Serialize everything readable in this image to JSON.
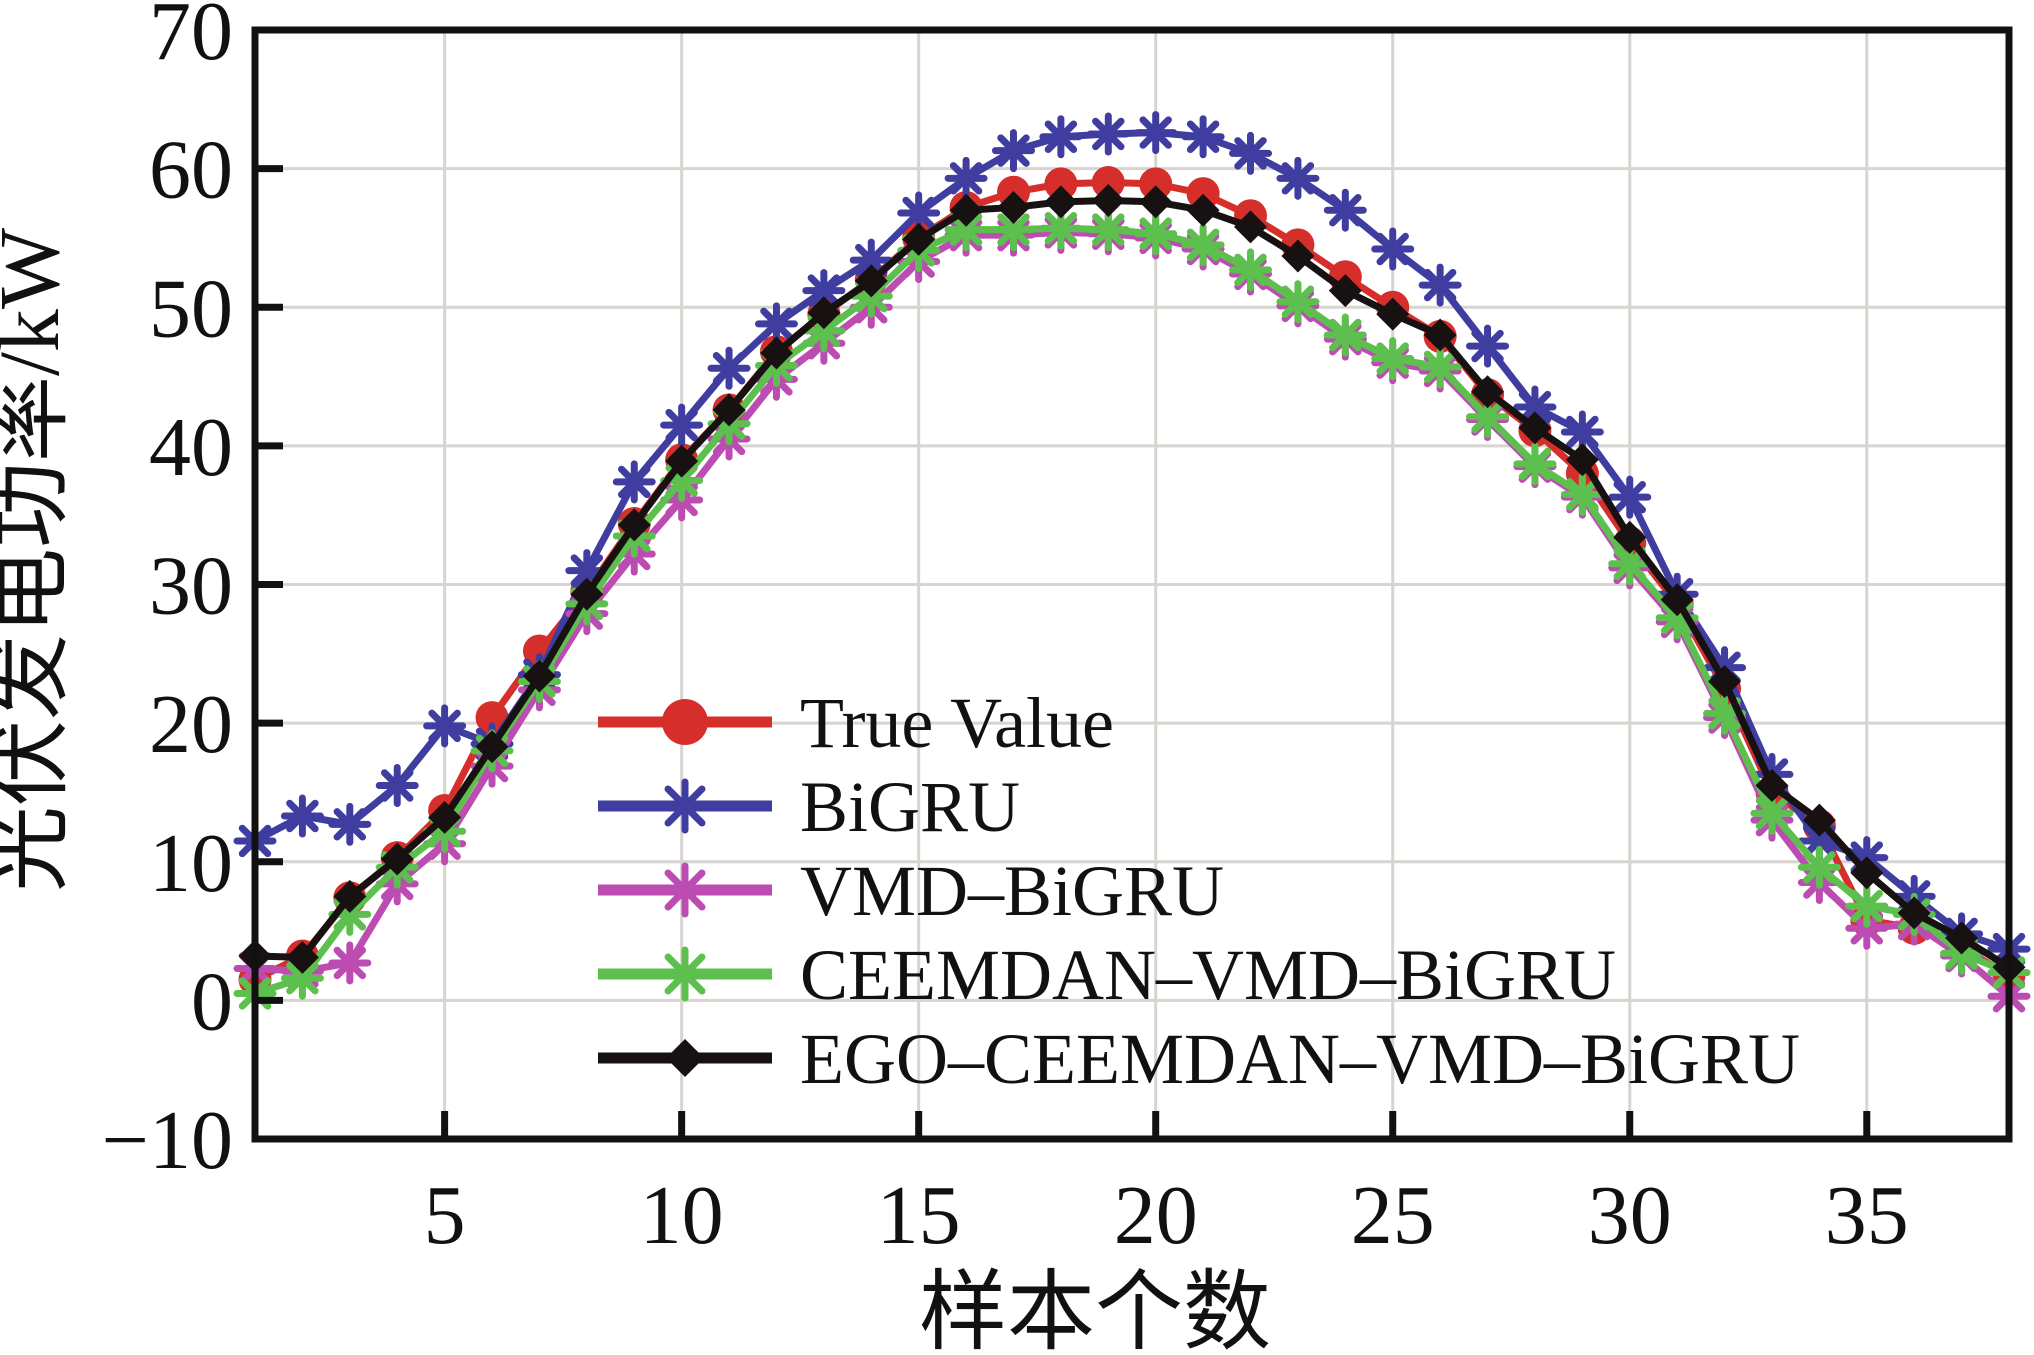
{
  "chart_data": {
    "type": "line",
    "title": "",
    "xlabel": "样本个数",
    "ylabel": "光伏发电功率/kW",
    "xlim": [
      1,
      38
    ],
    "ylim": [
      -10,
      70
    ],
    "xticks": [
      5,
      10,
      15,
      20,
      25,
      30,
      35
    ],
    "yticks": [
      -10,
      0,
      10,
      20,
      30,
      40,
      50,
      60,
      70
    ],
    "grid": true,
    "grid_color": "#d8d4d0",
    "axis_color": "#111111",
    "legend_position": "inside-lower-left-of-center, no frame",
    "x": [
      1,
      2,
      3,
      4,
      5,
      6,
      7,
      8,
      9,
      10,
      11,
      12,
      13,
      14,
      15,
      16,
      17,
      18,
      19,
      20,
      21,
      22,
      23,
      24,
      25,
      26,
      27,
      28,
      29,
      30,
      31,
      32,
      33,
      34,
      35,
      36,
      37,
      38
    ],
    "series": [
      {
        "name": "True Value",
        "color": "#d62f2b",
        "marker": "circle",
        "values": [
          1.5,
          3.2,
          7.4,
          10.3,
          13.7,
          20.4,
          25.2,
          29.5,
          34.4,
          39.0,
          42.6,
          46.8,
          49.5,
          52.0,
          55.0,
          57.2,
          58.3,
          58.9,
          59.0,
          58.9,
          58.2,
          56.6,
          54.5,
          52.2,
          50.0,
          47.9,
          43.7,
          41.1,
          38.0,
          33.0,
          28.6,
          22.5,
          15.0,
          12.6,
          5.8,
          5.2,
          3.8,
          1.8
        ]
      },
      {
        "name": "BiGRU",
        "color": "#3f3da0",
        "marker": "asterisk",
        "values": [
          11.5,
          13.3,
          12.7,
          15.5,
          19.8,
          18.5,
          23.5,
          31.0,
          37.4,
          41.5,
          45.6,
          48.8,
          51.2,
          53.4,
          56.8,
          59.3,
          61.3,
          62.3,
          62.5,
          62.6,
          62.3,
          61.1,
          59.3,
          57.0,
          54.2,
          51.6,
          47.2,
          42.8,
          41.0,
          36.3,
          29.3,
          24.0,
          16.3,
          11.5,
          10.3,
          7.5,
          4.8,
          3.7
        ]
      },
      {
        "name": "VMD–BiGRU",
        "color": "#bc4cb2",
        "marker": "asterisk",
        "values": [
          2.3,
          2.1,
          2.7,
          8.4,
          11.3,
          16.9,
          22.4,
          27.9,
          32.2,
          36.1,
          40.5,
          44.8,
          47.4,
          50.0,
          53.3,
          55.2,
          55.2,
          55.4,
          55.3,
          55.0,
          54.2,
          52.4,
          50.1,
          47.7,
          46.0,
          45.4,
          41.9,
          38.5,
          36.3,
          31.2,
          27.3,
          20.4,
          13.0,
          8.5,
          5.2,
          5.5,
          3.2,
          0.3
        ]
      },
      {
        "name": "CEEMDAN–VMD–BiGRU",
        "color": "#5dc04e",
        "marker": "asterisk",
        "values": [
          0.5,
          1.6,
          6.2,
          9.6,
          12.2,
          18.0,
          23.0,
          28.6,
          33.5,
          37.5,
          41.6,
          45.8,
          48.3,
          50.8,
          54.1,
          55.6,
          55.6,
          55.7,
          55.6,
          55.3,
          54.5,
          52.7,
          50.4,
          48.0,
          46.3,
          45.7,
          42.1,
          38.7,
          36.5,
          31.5,
          27.6,
          20.7,
          13.5,
          9.6,
          6.8,
          6.2,
          3.4,
          2.0
        ]
      },
      {
        "name": "EGO–CEEMDAN–VMD–BiGRU",
        "color": "#171112",
        "marker": "diamond",
        "values": [
          3.2,
          3.1,
          7.5,
          10.2,
          13.2,
          18.3,
          23.4,
          29.3,
          34.3,
          38.9,
          42.6,
          46.7,
          49.6,
          51.9,
          54.9,
          57.0,
          57.2,
          57.6,
          57.7,
          57.6,
          57.0,
          55.8,
          53.7,
          51.2,
          49.5,
          48.0,
          43.9,
          41.3,
          39.0,
          33.4,
          28.9,
          23.0,
          15.5,
          13.0,
          9.2,
          6.3,
          4.5,
          2.4
        ]
      }
    ]
  }
}
